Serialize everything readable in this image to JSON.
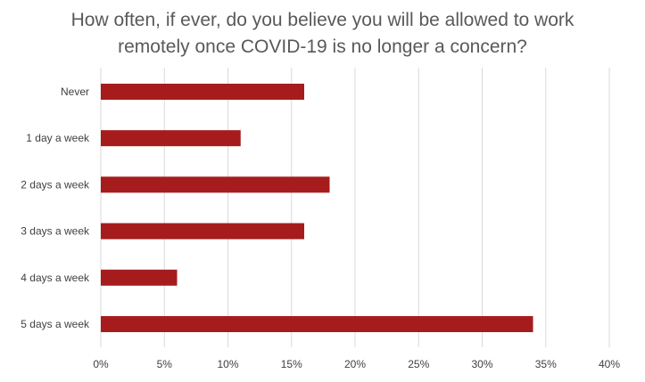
{
  "chart_data": {
    "type": "bar",
    "orientation": "horizontal",
    "title_lines": [
      "How often, if ever, do you believe you will be allowed to work",
      "remotely once COVID-19 is no longer a concern?"
    ],
    "categories": [
      "Never",
      "1 day a week",
      "2 days a week",
      "3 days a week",
      "4 days a week",
      "5 days a week"
    ],
    "values": [
      16,
      11,
      18,
      16,
      6,
      34
    ],
    "xlim": [
      0,
      40
    ],
    "xticks": [
      0,
      5,
      10,
      15,
      20,
      25,
      30,
      35,
      40
    ],
    "xtick_labels": [
      "0%",
      "5%",
      "10%",
      "15%",
      "20%",
      "25%",
      "30%",
      "35%",
      "40%"
    ],
    "grid": true,
    "bar_color": "#a61c1c",
    "grid_color": "#d9d9d9"
  }
}
